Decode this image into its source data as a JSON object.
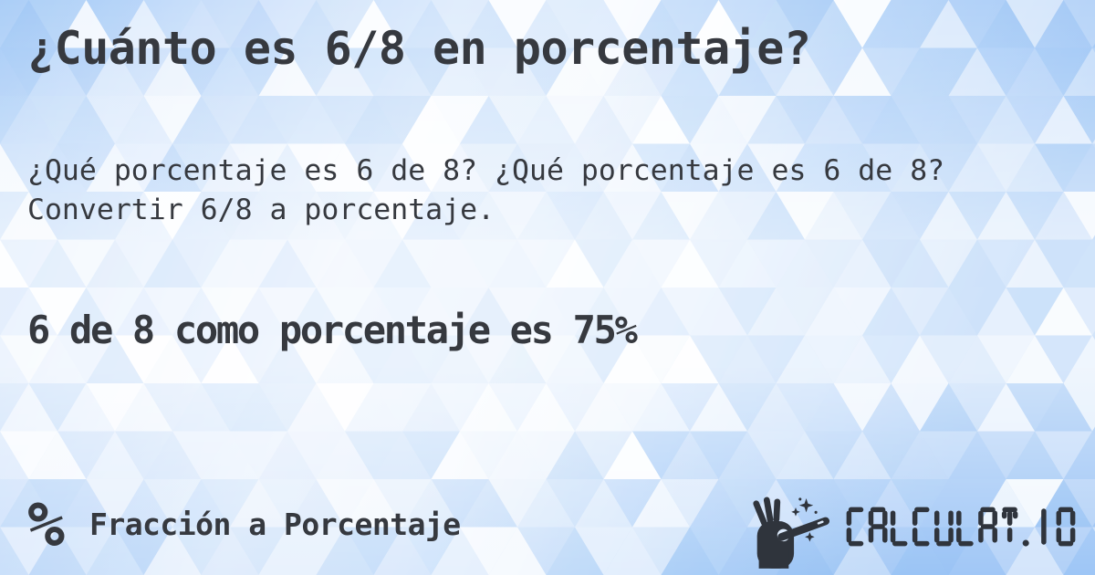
{
  "page": {
    "title": "¿Cuánto es 6/8 en porcentaje?",
    "description": "¿Qué porcentaje es 6 de 8? ¿Qué porcentaje es 6 de 8? Convertir 6/8 a porcentaje.",
    "answer": "6 de 8 como porcentaje es 75%"
  },
  "footer": {
    "category_icon": "%",
    "category_label": "Fracción a Porcentaje",
    "brand": "CALCULAT.IO",
    "brand_icon": "magic-wand-hand-icon"
  },
  "theme": {
    "ink": "#36393F",
    "logo_ink": "#2F343C",
    "hole_fill": "#DCEAFB",
    "triangle_palette": [
      "#FFFFFF",
      "#E8F1FD",
      "#CFE2FB",
      "#B3D3F8",
      "#9CC6F6",
      "#8FBDF3"
    ],
    "base_gradient": [
      "#A9CDF7",
      "#CFE2FB",
      "#F2F7FE",
      "#E9F2FD",
      "#BCD8F9",
      "#9AC3F5"
    ]
  }
}
